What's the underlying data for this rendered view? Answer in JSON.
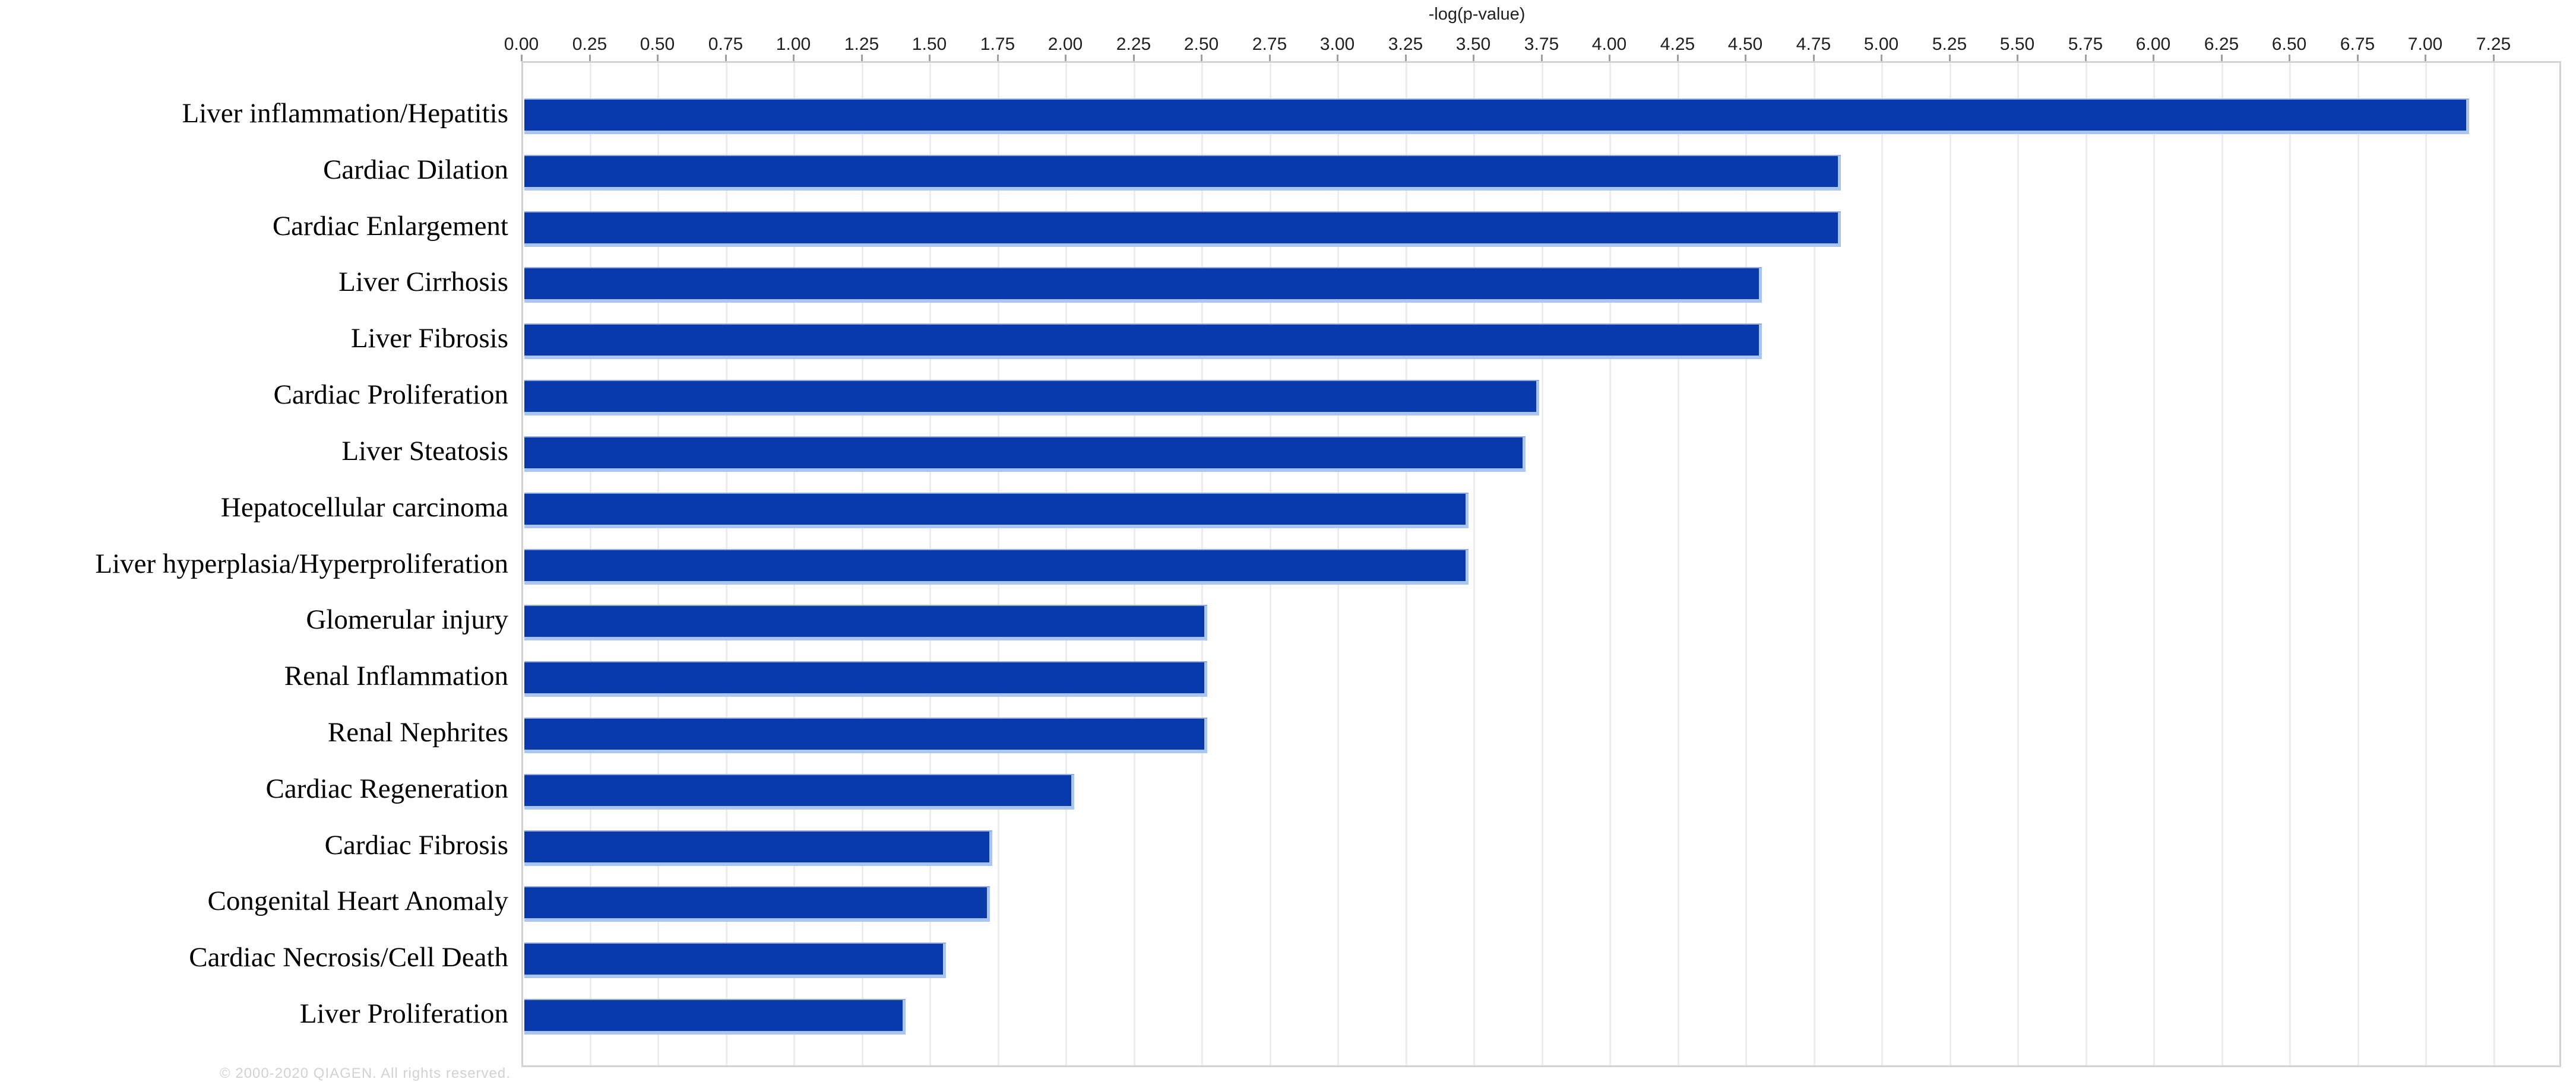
{
  "page": {
    "background": "#ffffff"
  },
  "chart_data": {
    "type": "bar",
    "orientation": "horizontal",
    "title": "",
    "xlabel": "-log(p-value)",
    "ylabel": "",
    "xlim": [
      0,
      7.5
    ],
    "tick_step": 0.25,
    "grid": "vertical",
    "legend": "none",
    "axis_position": "top",
    "bar_color": "#0a39ab",
    "bar_edge_color": "#a9c5f3",
    "x_tick_labels": [
      "0.00",
      "0.25",
      "0.50",
      "0.75",
      "1.00",
      "1.25",
      "1.50",
      "1.75",
      "2.00",
      "2.25",
      "2.50",
      "2.75",
      "3.00",
      "3.25",
      "3.50",
      "3.75",
      "4.00",
      "4.25",
      "4.50",
      "4.75",
      "5.00",
      "5.25",
      "5.50",
      "5.75",
      "6.00",
      "6.25",
      "6.50",
      "6.75",
      "7.00",
      "7.25"
    ],
    "categories": [
      "Liver inflammation/Hepatitis",
      "Cardiac Dilation",
      "Cardiac Enlargement",
      "Liver Cirrhosis",
      "Liver Fibrosis",
      "Cardiac Proliferation",
      "Liver Steatosis",
      "Hepatocellular carcinoma",
      "Liver hyperplasia/Hyperproliferation",
      "Glomerular injury",
      "Renal Inflammation",
      "Renal Nephrites",
      "Cardiac Regeneration",
      "Cardiac Fibrosis",
      "Congenital Heart Anomaly",
      "Cardiac Necrosis/Cell Death",
      "Liver Proliferation"
    ],
    "values": [
      7.14,
      4.83,
      4.83,
      4.54,
      4.54,
      3.72,
      3.67,
      3.46,
      3.46,
      2.5,
      2.5,
      2.5,
      2.01,
      1.71,
      1.7,
      1.54,
      1.39
    ]
  },
  "footer": {
    "watermark": "© 2000-2020 QIAGEN. All rights reserved."
  }
}
